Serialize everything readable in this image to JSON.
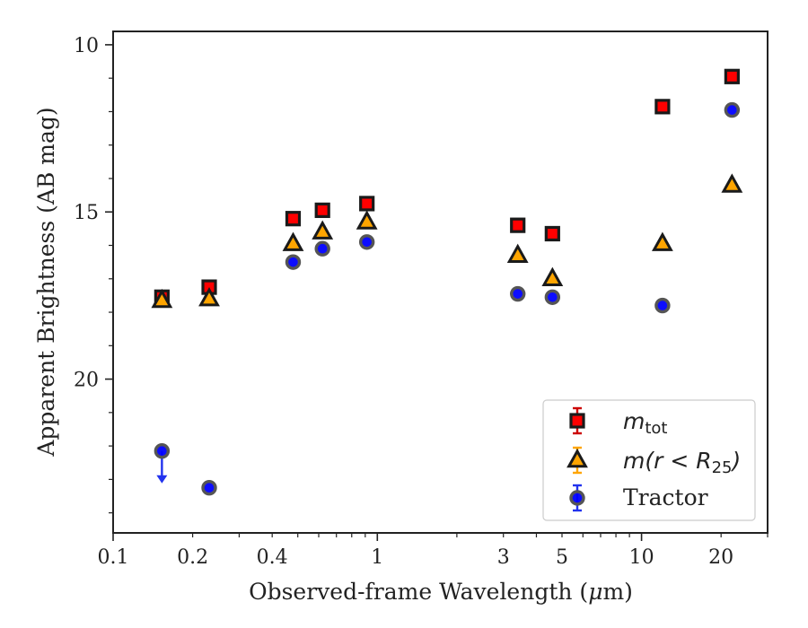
{
  "chart_data": {
    "type": "scatter",
    "xlabel": "Observed-frame Wavelength (",
    "xlabel_mu": "μ",
    "xlabel_unit": "m)",
    "ylabel": "Apparent Brightness (AB mag)",
    "xscale": "log",
    "xlim": [
      0.1,
      30
    ],
    "ylim": [
      24.6,
      9.6
    ],
    "y_inverted": true,
    "grid": false,
    "legend_position": "bottom-right",
    "x_ticks": [
      {
        "value": 0.1,
        "label": "0.1"
      },
      {
        "value": 0.2,
        "label": "0.2"
      },
      {
        "value": 0.4,
        "label": "0.4"
      },
      {
        "value": 1,
        "label": "1"
      },
      {
        "value": 3,
        "label": "3"
      },
      {
        "value": 5,
        "label": "5"
      },
      {
        "value": 10,
        "label": "10"
      },
      {
        "value": 20,
        "label": "20"
      }
    ],
    "y_ticks": [
      {
        "value": 10,
        "label": "10"
      },
      {
        "value": 15,
        "label": "15"
      },
      {
        "value": 20,
        "label": "20"
      }
    ],
    "series": [
      {
        "name_main": "m",
        "name_sub": "tot",
        "marker": "square",
        "color": "#ff0000",
        "edge": "#1a1a1a",
        "points": [
          {
            "x": 0.153,
            "y": 17.55
          },
          {
            "x": 0.231,
            "y": 17.25
          },
          {
            "x": 0.48,
            "y": 15.2
          },
          {
            "x": 0.62,
            "y": 14.95
          },
          {
            "x": 0.913,
            "y": 14.75
          },
          {
            "x": 3.4,
            "y": 15.4
          },
          {
            "x": 4.6,
            "y": 15.65
          },
          {
            "x": 12.0,
            "y": 11.85
          },
          {
            "x": 22.0,
            "y": 10.95
          }
        ]
      },
      {
        "name_main": "m(r < R",
        "name_sub": "25",
        "name_end": ")",
        "marker": "triangle",
        "color": "#ffa500",
        "edge": "#1a1a1a",
        "points": [
          {
            "x": 0.153,
            "y": 17.65
          },
          {
            "x": 0.231,
            "y": 17.6
          },
          {
            "x": 0.48,
            "y": 15.95
          },
          {
            "x": 0.62,
            "y": 15.6
          },
          {
            "x": 0.913,
            "y": 15.3
          },
          {
            "x": 3.4,
            "y": 16.3
          },
          {
            "x": 4.6,
            "y": 17.0
          },
          {
            "x": 12.0,
            "y": 15.95
          },
          {
            "x": 22.0,
            "y": 14.2
          }
        ]
      },
      {
        "name": "Tractor",
        "marker": "circle",
        "color": "#0000ff",
        "edge": "#555555",
        "points": [
          {
            "x": 0.153,
            "y": 22.15,
            "upper_limit": true
          },
          {
            "x": 0.231,
            "y": 23.25
          },
          {
            "x": 0.48,
            "y": 16.5
          },
          {
            "x": 0.62,
            "y": 16.1
          },
          {
            "x": 0.913,
            "y": 15.9
          },
          {
            "x": 3.4,
            "y": 17.45
          },
          {
            "x": 4.6,
            "y": 17.55
          },
          {
            "x": 12.0,
            "y": 17.8
          },
          {
            "x": 22.0,
            "y": 11.95
          }
        ]
      }
    ]
  }
}
